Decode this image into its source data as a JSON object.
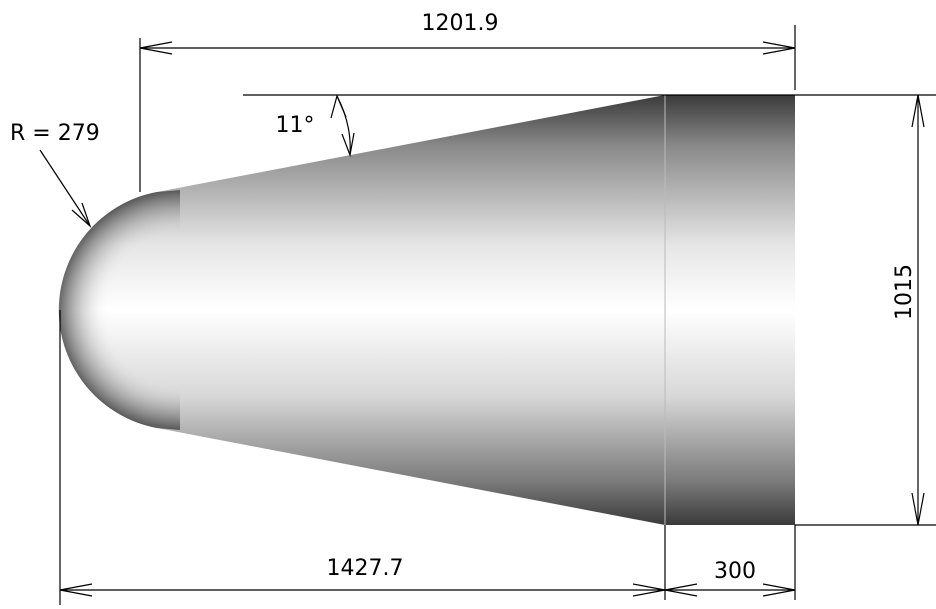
{
  "dimensions": {
    "top_length": "1201.9",
    "angle": "11°",
    "radius": "R = 279",
    "height": "1015",
    "cone_length": "1427.7",
    "cylinder_length": "300"
  }
}
